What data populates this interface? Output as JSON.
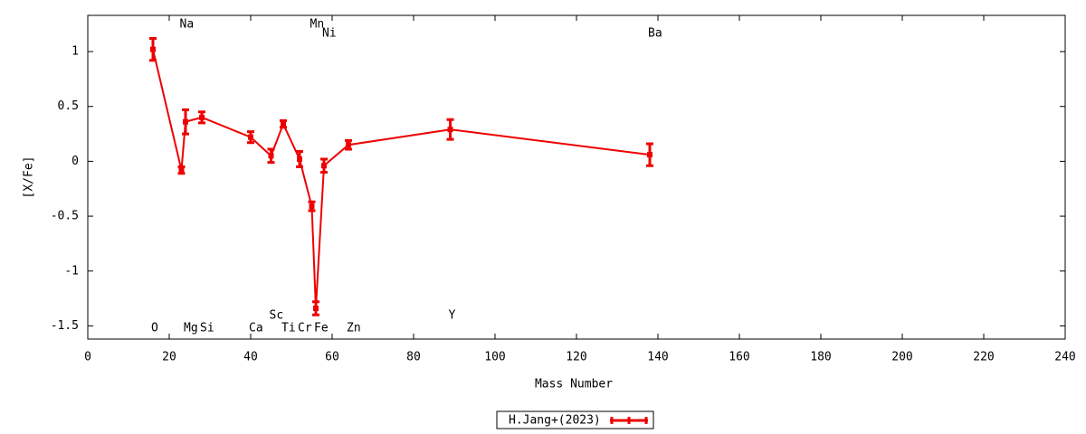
{
  "chart_data": {
    "type": "errorline",
    "x_label": "Mass Number",
    "y_label": "[X/Fe]",
    "xlim": [
      0,
      240
    ],
    "xticks": [
      0,
      20,
      40,
      60,
      80,
      100,
      120,
      140,
      160,
      180,
      200,
      220,
      240
    ],
    "ylim": [
      -1.62,
      1.33
    ],
    "yticks": [
      -1.5,
      -1,
      -0.5,
      0,
      0.5,
      1
    ],
    "x": [
      16,
      23,
      24,
      28,
      40,
      45,
      48,
      52,
      55,
      56,
      58,
      64,
      89,
      138
    ],
    "point_labels": [
      "O",
      "Na",
      "Mg",
      "Si",
      "Ca",
      "Sc",
      "Ti",
      "Cr",
      "Mn",
      "Fe",
      "Ni",
      "Zn",
      "Y",
      "Ba"
    ],
    "series": [
      {
        "name": "H.Jang+(2023)",
        "color": "#ee0000",
        "values": [
          1.02,
          -0.08,
          0.36,
          0.4,
          0.22,
          0.05,
          0.34,
          0.02,
          -0.41,
          -1.34,
          -0.04,
          0.15,
          0.29,
          0.06
        ],
        "errors": [
          0.1,
          0.03,
          0.11,
          0.05,
          0.05,
          0.06,
          0.03,
          0.07,
          0.04,
          0.06,
          0.06,
          0.04,
          0.09,
          0.1
        ]
      }
    ]
  }
}
